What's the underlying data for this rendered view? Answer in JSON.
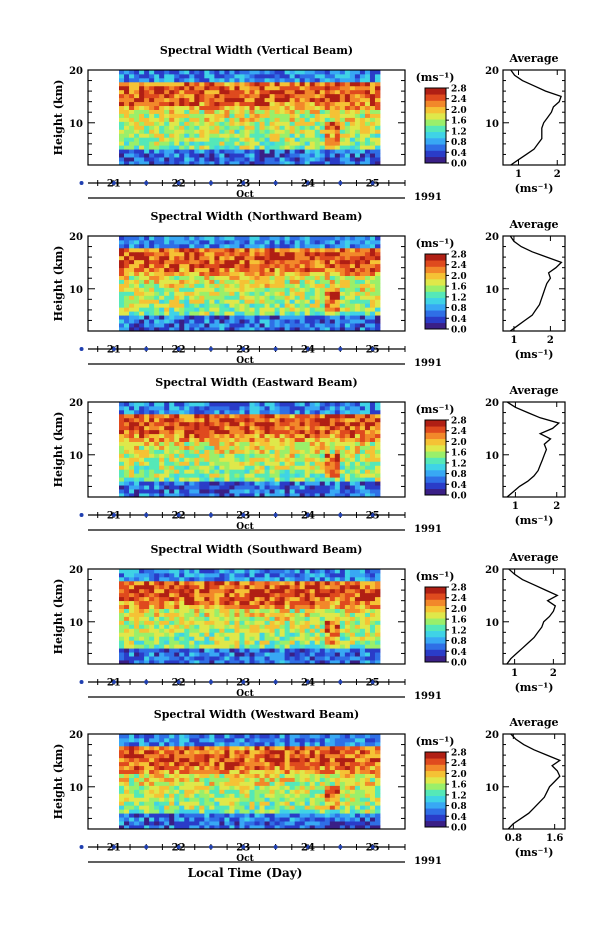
{
  "figure": {
    "xlabel": "Local Time (Day)",
    "cbar_title": "(ms⁻¹)",
    "avg_title": "Average",
    "avg_xlabel": "(ms⁻¹)",
    "month": "Oct",
    "year": "1991",
    "ylabel": "Height (km)",
    "colors": [
      "#3a1f86",
      "#2a3cc8",
      "#2f6fe6",
      "#38a8f4",
      "#3fd3e6",
      "#55e8b8",
      "#9aef6a",
      "#dfe84a",
      "#f5c235",
      "#f2882a",
      "#df4a1e",
      "#b01f14"
    ]
  },
  "chart_data": [
    {
      "type": "heatmap",
      "title": "Spectral Width (Vertical Beam)",
      "x_ticks": [
        "21",
        "22",
        "23",
        "24",
        "25"
      ],
      "xlim": [
        20.6,
        25.5
      ],
      "ylim": [
        2,
        20
      ],
      "y_ticks": [
        "10",
        "20"
      ],
      "colorbar_ticks": [
        "0.0",
        "0.4",
        "0.8",
        "1.2",
        "1.6",
        "2.0",
        "2.4",
        "2.8"
      ],
      "colorbar_range": [
        0,
        2.8
      ],
      "average": {
        "x_ticks": [
          "1",
          "2"
        ],
        "xlim": [
          0.6,
          2.2
        ],
        "height": [
          2,
          3,
          4,
          5,
          6,
          7,
          8,
          9,
          10,
          11,
          12,
          13,
          14,
          15,
          16,
          17,
          18,
          19,
          20
        ],
        "width": [
          0.8,
          1.0,
          1.2,
          1.4,
          1.5,
          1.6,
          1.6,
          1.6,
          1.65,
          1.75,
          1.85,
          1.9,
          2.05,
          2.1,
          1.7,
          1.4,
          1.1,
          0.9,
          0.8
        ]
      }
    },
    {
      "type": "heatmap",
      "title": "Spectral Width (Northward Beam)",
      "x_ticks": [
        "21",
        "22",
        "23",
        "24",
        "25"
      ],
      "xlim": [
        20.6,
        25.5
      ],
      "ylim": [
        2,
        20
      ],
      "y_ticks": [
        "10",
        "20"
      ],
      "colorbar_ticks": [
        "0.0",
        "0.4",
        "0.8",
        "1.2",
        "1.6",
        "2.0",
        "2.4",
        "2.8"
      ],
      "colorbar_range": [
        0,
        2.8
      ],
      "average": {
        "x_ticks": [
          "1",
          "2"
        ],
        "xlim": [
          0.7,
          2.4
        ],
        "height": [
          2,
          3,
          4,
          5,
          6,
          7,
          8,
          9,
          10,
          11,
          12,
          13,
          14,
          15,
          16,
          17,
          18,
          19,
          20
        ],
        "width": [
          0.9,
          1.1,
          1.3,
          1.5,
          1.6,
          1.7,
          1.75,
          1.8,
          1.85,
          1.9,
          2.0,
          1.95,
          2.15,
          2.3,
          1.9,
          1.5,
          1.2,
          1.0,
          0.9
        ]
      }
    },
    {
      "type": "heatmap",
      "title": "Spectral Width (Eastward Beam)",
      "x_ticks": [
        "21",
        "22",
        "23",
        "24",
        "25"
      ],
      "xlim": [
        20.6,
        25.5
      ],
      "ylim": [
        2,
        20
      ],
      "y_ticks": [
        "10",
        "20"
      ],
      "colorbar_ticks": [
        "0.0",
        "0.4",
        "0.8",
        "1.2",
        "1.6",
        "2.0",
        "2.4",
        "2.8"
      ],
      "colorbar_range": [
        0,
        2.8
      ],
      "average": {
        "x_ticks": [
          "1",
          "2"
        ],
        "xlim": [
          0.7,
          2.2
        ],
        "height": [
          2,
          3,
          4,
          5,
          6,
          7,
          8,
          9,
          10,
          11,
          12,
          13,
          14,
          15,
          16,
          17,
          18,
          19,
          20
        ],
        "width": [
          0.8,
          0.95,
          1.1,
          1.3,
          1.45,
          1.55,
          1.6,
          1.65,
          1.7,
          1.75,
          1.7,
          1.85,
          1.6,
          1.9,
          2.05,
          1.6,
          1.3,
          1.0,
          0.8
        ]
      }
    },
    {
      "type": "heatmap",
      "title": "Spectral Width (Southward Beam)",
      "x_ticks": [
        "21",
        "22",
        "23",
        "24",
        "25"
      ],
      "xlim": [
        20.6,
        25.5
      ],
      "ylim": [
        2,
        20
      ],
      "y_ticks": [
        "10",
        "20"
      ],
      "colorbar_ticks": [
        "0.0",
        "0.4",
        "0.8",
        "1.2",
        "1.6",
        "2.0",
        "2.4",
        "2.8"
      ],
      "colorbar_range": [
        0,
        2.8
      ],
      "average": {
        "x_ticks": [
          "1",
          "2"
        ],
        "xlim": [
          0.7,
          2.3
        ],
        "height": [
          2,
          3,
          4,
          5,
          6,
          7,
          8,
          9,
          10,
          11,
          12,
          13,
          14,
          15,
          16,
          17,
          18,
          19,
          20
        ],
        "width": [
          0.8,
          0.9,
          1.05,
          1.2,
          1.35,
          1.5,
          1.6,
          1.7,
          1.75,
          1.9,
          2.0,
          2.05,
          1.85,
          2.1,
          1.8,
          1.5,
          1.2,
          1.0,
          0.85
        ]
      }
    },
    {
      "type": "heatmap",
      "title": "Spectral Width (Westward Beam)",
      "x_ticks": [
        "21",
        "22",
        "23",
        "24",
        "25"
      ],
      "xlim": [
        20.6,
        25.5
      ],
      "ylim": [
        2,
        20
      ],
      "y_ticks": [
        "10",
        "20"
      ],
      "colorbar_ticks": [
        "0.0",
        "0.4",
        "0.8",
        "1.2",
        "1.6",
        "2.0",
        "2.4",
        "2.8"
      ],
      "colorbar_range": [
        0,
        2.8
      ],
      "average": {
        "x_ticks": [
          "0.8",
          "1.6"
        ],
        "xlim": [
          0.6,
          1.8
        ],
        "height": [
          2,
          3,
          4,
          5,
          6,
          7,
          8,
          9,
          10,
          11,
          12,
          13,
          14,
          15,
          16,
          17,
          18,
          19,
          20
        ],
        "width": [
          0.7,
          0.8,
          0.95,
          1.1,
          1.2,
          1.3,
          1.4,
          1.45,
          1.5,
          1.6,
          1.7,
          1.65,
          1.55,
          1.7,
          1.45,
          1.2,
          1.0,
          0.85,
          0.75
        ]
      }
    }
  ]
}
